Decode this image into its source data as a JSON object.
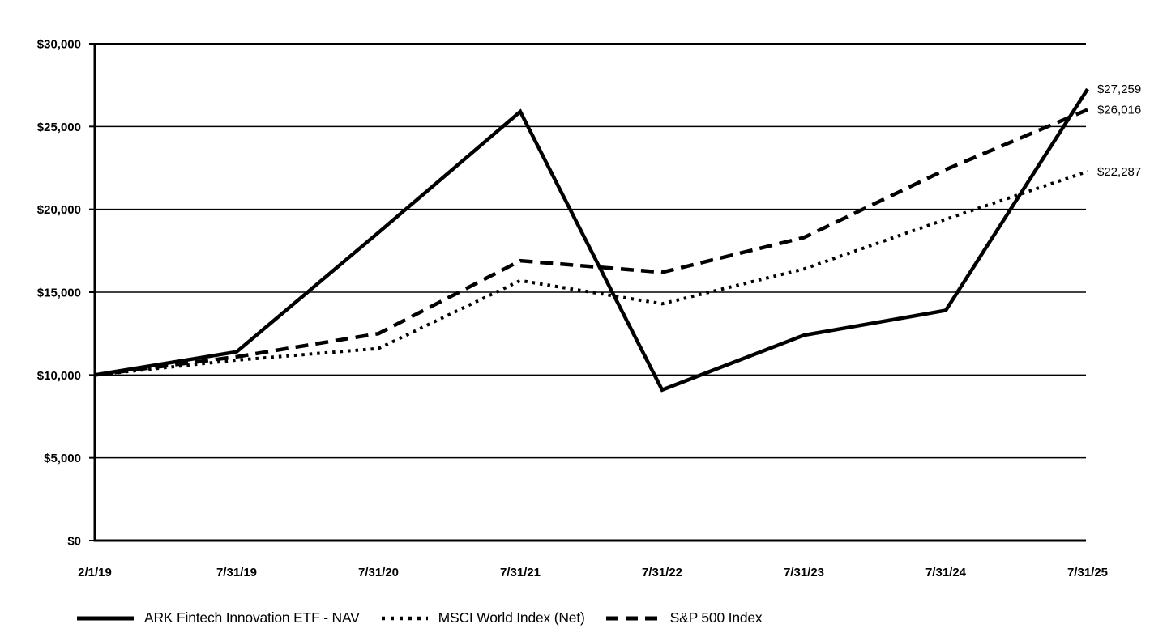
{
  "chart_data": {
    "type": "line",
    "title": "",
    "xlabel": "",
    "ylabel": "",
    "x_labels": [
      "2/1/19",
      "7/31/19",
      "7/31/20",
      "7/31/21",
      "7/31/22",
      "7/31/23",
      "7/31/24",
      "7/31/25"
    ],
    "y_tick_values": [
      0,
      5000,
      10000,
      15000,
      20000,
      25000,
      30000
    ],
    "y_tick_labels": [
      "$0",
      "$5,000",
      "$10,000",
      "$15,000",
      "$20,000",
      "$25,000",
      "$30,000"
    ],
    "ylim": [
      0,
      30000
    ],
    "grid": "horizontal-solid",
    "legend_position": "bottom",
    "line_color": "#000000",
    "background": "#ffffff",
    "series": [
      {
        "name": "ARK Fintech Innovation ETF - NAV",
        "style": "solid",
        "end_label": "$27,259",
        "values": [
          10000,
          11400,
          18600,
          25900,
          9100,
          12400,
          13900,
          27259
        ]
      },
      {
        "name": "MSCI World Index (Net)",
        "style": "dotted",
        "end_label": "$22,287",
        "values": [
          10000,
          10900,
          11600,
          15700,
          14300,
          16400,
          19400,
          22287
        ]
      },
      {
        "name": "S&P 500 Index",
        "style": "dashed",
        "end_label": "$26,016",
        "values": [
          10000,
          11100,
          12500,
          16900,
          16200,
          18300,
          22400,
          26016
        ]
      }
    ]
  }
}
